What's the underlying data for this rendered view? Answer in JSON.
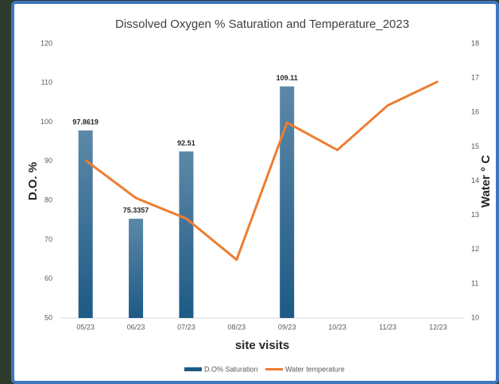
{
  "chart_data": {
    "type": "bar_line",
    "title": "Dissolved Oxygen % Saturation and Temperature_2023",
    "x_label": "site visits",
    "y_label": "D.O. %",
    "y2_label": "Water ° C",
    "categories": [
      "05/23",
      "06/23",
      "07/23",
      "08/23",
      "09/23",
      "10/23",
      "11/23",
      "12/23"
    ],
    "series": [
      {
        "name": "D.O% Saturation",
        "type": "bar",
        "color": "#1d5a86",
        "values": [
          97.8619,
          75.3357,
          92.51,
          null,
          109.11,
          null,
          null,
          null
        ]
      },
      {
        "name": "Water temperature",
        "type": "line",
        "axis": "y2",
        "color": "#ed7d31",
        "values": [
          14.6,
          13.5,
          12.9,
          11.7,
          15.7,
          14.9,
          16.2,
          16.9
        ]
      }
    ],
    "ylim": [
      50,
      120
    ],
    "yticks": [
      50,
      60,
      70,
      80,
      90,
      100,
      110,
      120
    ],
    "y2lim": [
      10,
      18
    ],
    "y2ticks": [
      10,
      11,
      12,
      13,
      14,
      15,
      16,
      17,
      18
    ],
    "grid": false,
    "legend": "bottom"
  }
}
